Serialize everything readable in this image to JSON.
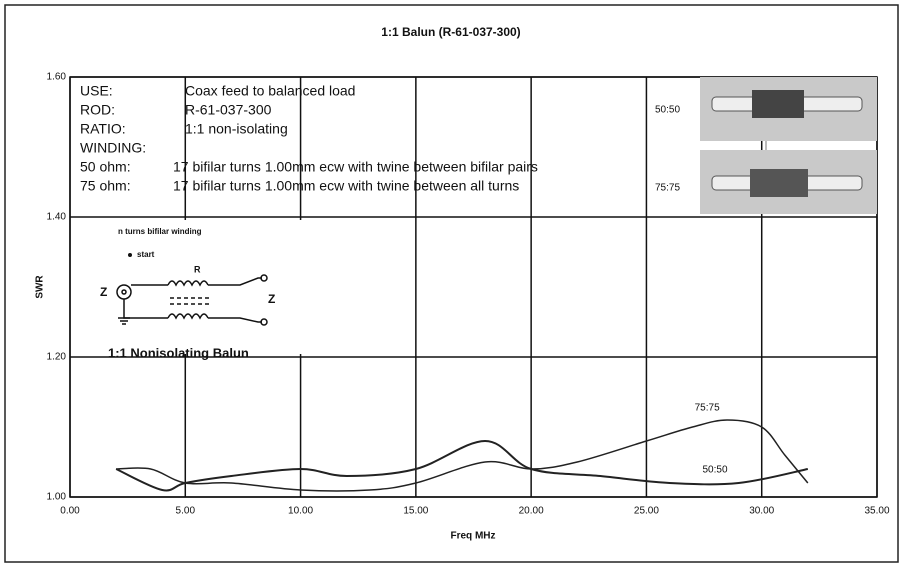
{
  "chart_data": {
    "type": "line",
    "title": "1:1 Balun (R-61-037-300)",
    "x_label": "Freq MHz",
    "y_label": "SWR",
    "xlim": [
      0,
      35
    ],
    "ylim": [
      1.0,
      1.6
    ],
    "xticks": [
      {
        "value": 0,
        "label": "0.00"
      },
      {
        "value": 5,
        "label": "5.00"
      },
      {
        "value": 10,
        "label": "10.00"
      },
      {
        "value": 15,
        "label": "15.00"
      },
      {
        "value": 20,
        "label": "20.00"
      },
      {
        "value": 25,
        "label": "25.00"
      },
      {
        "value": 30,
        "label": "30.00"
      },
      {
        "value": 35,
        "label": "35.00"
      }
    ],
    "yticks": [
      {
        "value": 1.0,
        "label": "1.00"
      },
      {
        "value": 1.2,
        "label": "1.20"
      },
      {
        "value": 1.4,
        "label": "1.40"
      },
      {
        "value": 1.6,
        "label": "1.60"
      }
    ],
    "grid": true,
    "series": [
      {
        "name": "75:75",
        "color": "#222222",
        "x": [
          2,
          3.5,
          5,
          7,
          10,
          13,
          15,
          18,
          20,
          22,
          25,
          27,
          28.5,
          30,
          31,
          32
        ],
        "values": [
          1.04,
          1.04,
          1.02,
          1.02,
          1.01,
          1.01,
          1.02,
          1.05,
          1.04,
          1.05,
          1.08,
          1.1,
          1.11,
          1.1,
          1.06,
          1.02
        ]
      },
      {
        "name": "50:50",
        "color": "#222222",
        "x": [
          2,
          4,
          5,
          7,
          10,
          12,
          15,
          18,
          20,
          23,
          26,
          29,
          32
        ],
        "values": [
          1.04,
          1.01,
          1.02,
          1.03,
          1.04,
          1.03,
          1.04,
          1.08,
          1.04,
          1.03,
          1.02,
          1.02,
          1.04
        ]
      }
    ],
    "notes": [
      {
        "label": "USE:",
        "text": "Coax feed to balanced load"
      },
      {
        "label": "ROD:",
        "text": "R-61-037-300"
      },
      {
        "label": "RATIO:",
        "text": "1:1 non-isolating"
      },
      {
        "label": "WINDING:",
        "text": null
      },
      {
        "label": "50 ohm:",
        "text": "17 bifilar turns 1.00mm ecw with twine between bifilar pairs"
      },
      {
        "label": "75 ohm:",
        "text": "17 bifilar turns 1.00mm ecw with twine between all turns"
      }
    ],
    "photo_labels": [
      "50:50",
      "75:75"
    ],
    "diagram": {
      "caption": "n turns bifilar winding",
      "start": "start",
      "core": "R",
      "left": "Z",
      "right": "Z",
      "name": "1:1 Nonisolating Balun"
    }
  }
}
